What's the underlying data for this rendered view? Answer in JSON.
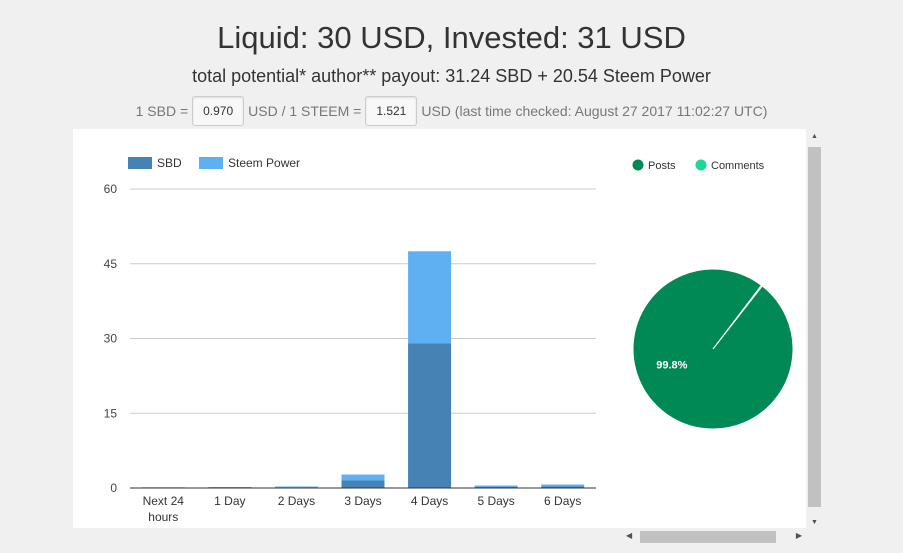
{
  "header": {
    "title": "Liquid: 30 USD, Invested: 31 USD",
    "subtitle": "total potential* author** payout: 31.24 SBD + 20.54 Steem Power"
  },
  "rates": {
    "sbd_prefix": "1 SBD =",
    "sbd_value": "0.970",
    "mid_text": "USD / 1 STEEM =",
    "steem_value": "1.521",
    "suffix": "USD (last time checked: August 27 2017 11:02:27 UTC)"
  },
  "chart_data": [
    {
      "type": "bar",
      "stacked": true,
      "categories": [
        "Next 24 hours",
        "1 Day",
        "2 Days",
        "3 Days",
        "4 Days",
        "5 Days",
        "6 Days"
      ],
      "series": [
        {
          "name": "SBD",
          "color": "#4682b4",
          "values": [
            0.1,
            0.1,
            0.1,
            1.5,
            29,
            0.2,
            0.3
          ]
        },
        {
          "name": "Steem Power",
          "color": "#5fb0f2",
          "values": [
            0.05,
            0.1,
            0.2,
            1.2,
            18.5,
            0.3,
            0.4
          ]
        }
      ],
      "yticks": [
        "0",
        "15",
        "30",
        "45",
        "60"
      ],
      "ylim": [
        0,
        60
      ],
      "grid": true,
      "legend": "top-left"
    },
    {
      "type": "pie",
      "slices": [
        {
          "name": "Posts",
          "value": 99.8,
          "label": "99.8%",
          "color": "#008855"
        },
        {
          "name": "Comments",
          "value": 0.2,
          "color": "#1ed698"
        }
      ],
      "legend": "top-right"
    }
  ],
  "scrollbar": {
    "up": "▲",
    "down": "▼",
    "left": "◀",
    "right": "▶"
  }
}
